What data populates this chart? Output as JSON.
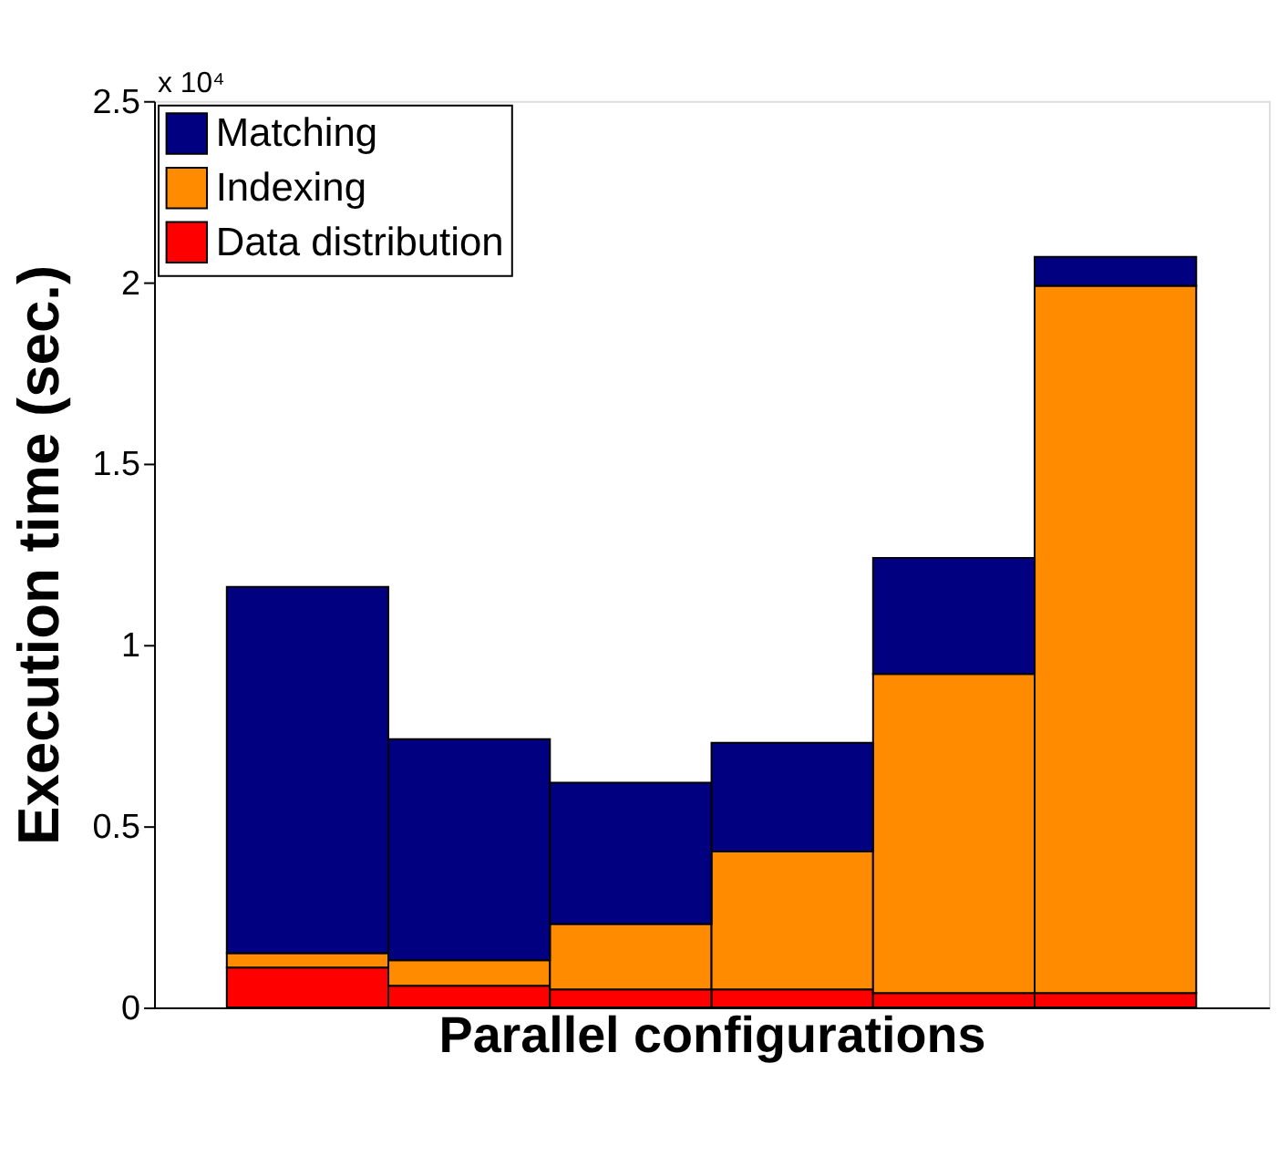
{
  "chart_data": {
    "type": "bar",
    "stacked": true,
    "xlabel": "Parallel configurations",
    "ylabel": "Execution time (sec.)",
    "categories": [
      null,
      null,
      null,
      null,
      null,
      null
    ],
    "series": [
      {
        "name": "Data distribution",
        "color": "#ff0000",
        "values": [
          0.11,
          0.06,
          0.05,
          0.05,
          0.04,
          0.04
        ]
      },
      {
        "name": "Indexing",
        "color": "#ff8c00",
        "values": [
          0.04,
          0.07,
          0.18,
          0.38,
          0.88,
          1.95
        ]
      },
      {
        "name": "Matching",
        "color": "#000080",
        "values": [
          1.01,
          0.61,
          0.39,
          0.3,
          0.32,
          0.08
        ]
      }
    ],
    "ylim": [
      0,
      2.5
    ],
    "yticks": [
      0,
      0.5,
      1,
      1.5,
      2,
      2.5
    ],
    "tick_labels": "y",
    "grid": false,
    "legend": "top left",
    "annotations": [
      "x 10⁴"
    ]
  }
}
